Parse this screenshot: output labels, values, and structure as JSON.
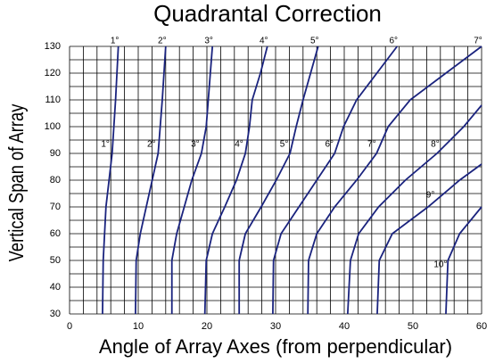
{
  "chart_data": {
    "type": "line",
    "title": "Quadrantal Correction",
    "x_label": "Angle of Array Axes (from perpendicular)",
    "y_label": "Vertical Span of Array",
    "xlim": [
      0,
      60
    ],
    "ylim": [
      30,
      130
    ],
    "xticks": [
      0,
      10,
      20,
      30,
      40,
      50,
      60
    ],
    "yticks": [
      30,
      40,
      50,
      60,
      70,
      80,
      90,
      100,
      110,
      120,
      130
    ],
    "x_grid": [
      0,
      2,
      4,
      6,
      8,
      10,
      12,
      14,
      16,
      18,
      20,
      22,
      24,
      26,
      28,
      30,
      32,
      34,
      36,
      38,
      40,
      42,
      44,
      46,
      48,
      50,
      52,
      54,
      56,
      58,
      60
    ],
    "y_grid": [
      30,
      35,
      40,
      45,
      50,
      55,
      60,
      65,
      70,
      75,
      80,
      85,
      90,
      95,
      100,
      105,
      110,
      115,
      120,
      125,
      130
    ],
    "grid": true,
    "series": [
      {
        "name": "1°",
        "color": "#1a237e",
        "x": [
          4.8,
          4.9,
          5.3,
          6.2,
          6.7,
          7.1
        ],
        "values": [
          30,
          50,
          70,
          90,
          110,
          130
        ]
      },
      {
        "name": "2°",
        "color": "#1a237e",
        "x": [
          9.6,
          9.7,
          10.3,
          12.9,
          13.5,
          14.0
        ],
        "values": [
          30,
          50,
          60,
          90,
          110,
          130
        ]
      },
      {
        "name": "3°",
        "color": "#1a237e",
        "x": [
          14.9,
          14.9,
          15.6,
          17.8,
          19.2,
          19.9,
          20.8
        ],
        "values": [
          30,
          50,
          60,
          80,
          90,
          100,
          130
        ]
      },
      {
        "name": "4°",
        "color": "#1a237e",
        "x": [
          19.7,
          19.9,
          20.8,
          22.6,
          24.3,
          25.6,
          26.2,
          26.6,
          27.8,
          28.8
        ],
        "values": [
          30,
          50,
          60,
          70,
          80,
          90,
          100,
          110,
          120,
          130
        ]
      },
      {
        "name": "5°",
        "color": "#1a237e",
        "x": [
          24.7,
          24.7,
          25.6,
          27.9,
          30.1,
          32.1,
          33.0,
          34.0,
          36.2
        ],
        "values": [
          30,
          50,
          60,
          70,
          80,
          90,
          100,
          110,
          130
        ]
      },
      {
        "name": "6°",
        "color": "#1a237e",
        "x": [
          29.6,
          29.7,
          30.8,
          33.4,
          36.0,
          38.6,
          39.9,
          41.8,
          47.7
        ],
        "values": [
          30,
          50,
          60,
          70,
          80,
          90,
          100,
          110,
          130
        ]
      },
      {
        "name": "7°",
        "color": "#1a237e",
        "x": [
          34.7,
          34.8,
          36.0,
          38.6,
          41.8,
          44.7,
          46.4,
          49.6,
          54.8,
          60
        ],
        "values": [
          30,
          50,
          60,
          70,
          80,
          90,
          100,
          110,
          120,
          130
        ]
      },
      {
        "name": "8°",
        "color": "#1a237e",
        "x": [
          40.5,
          40.9,
          42.1,
          45.0,
          48.9,
          53.5,
          57.4,
          60
        ],
        "values": [
          30,
          50,
          60,
          70,
          80,
          90,
          100,
          108
        ]
      },
      {
        "name": "9°",
        "color": "#1a237e",
        "x": [
          44.8,
          45.1,
          47.0,
          52.2,
          56.8,
          60
        ],
        "values": [
          30,
          50,
          60,
          70,
          80,
          86
        ]
      },
      {
        "name": "10°",
        "color": "#1a237e",
        "x": [
          54.8,
          55.1,
          56.8,
          60
        ],
        "values": [
          30,
          50,
          60,
          70
        ]
      }
    ]
  }
}
